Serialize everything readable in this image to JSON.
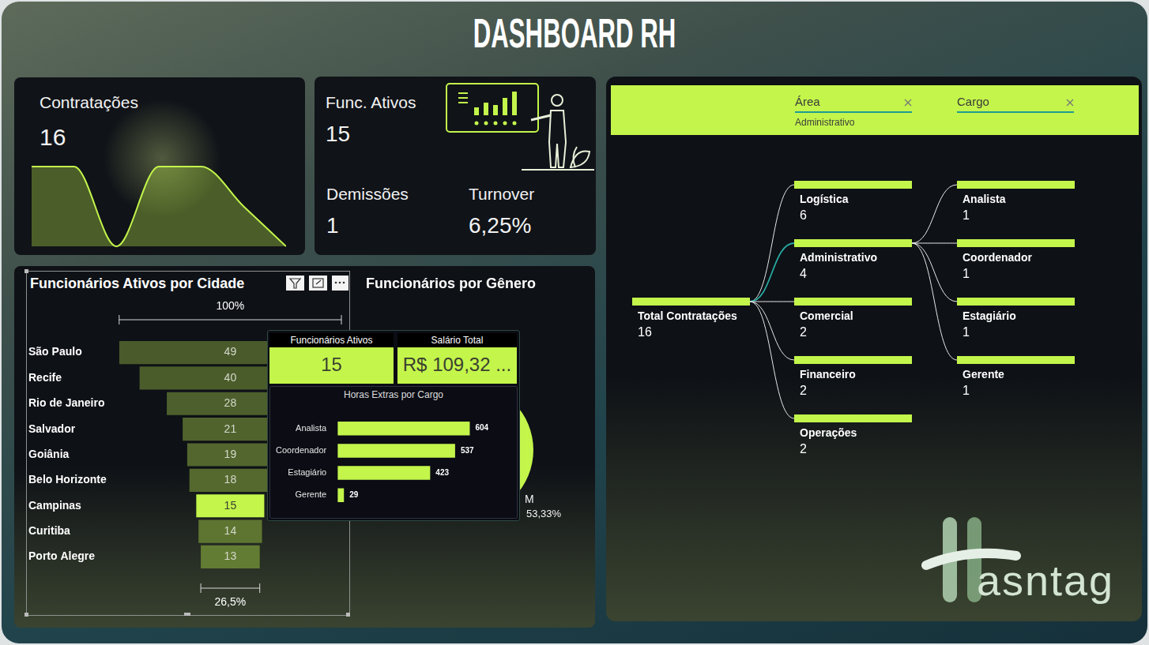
{
  "title": "DASHBOARD RH",
  "cards": [
    {
      "label": "Contratações",
      "value": 16
    },
    {
      "label": "Func. Ativos",
      "value": 15
    },
    {
      "label": "Demissões",
      "value": 1
    },
    {
      "label": "Turnover",
      "value": 6.25,
      "value_label": "6,25%"
    }
  ],
  "chart_data": [
    {
      "type": "line",
      "categories": [
        null,
        null,
        null,
        null,
        null,
        null,
        null
      ],
      "values": [
        2,
        2,
        0,
        2,
        2,
        1,
        0
      ],
      "color": "#c3f54b",
      "tick_labels": false,
      "grid": false
    },
    {
      "type": "funnel",
      "title": "Funcionários Ativos por Cidade",
      "orientation": "horizontal",
      "categories": [
        "São Paulo",
        "Recife",
        "Rio de Janeiro",
        "Salvador",
        "Goiânia",
        "Belo Horizonte",
        "Campinas",
        "Curitiba",
        "Porto Alegre"
      ],
      "values": [
        49,
        40,
        28,
        21,
        19,
        18,
        15,
        14,
        13
      ],
      "colors": [
        "#4a5a2b",
        "#4b5c2b",
        "#4d5f2c",
        "#50632d",
        "#52662e",
        "#55692f",
        "#c3f54b",
        "#5e7531",
        "#637c33"
      ],
      "data_labels": true,
      "tick_labels": "y",
      "grid": false,
      "annotations": [
        "100%",
        "26,5%"
      ]
    },
    {
      "type": "pie",
      "title": "Funcionários por Gênero",
      "categories": [
        "M"
      ],
      "values": [
        53.33
      ],
      "value_labels": [
        "53,33%"
      ],
      "colors": [
        "#c3f54b"
      ],
      "data_labels": true
    },
    {
      "type": "bar",
      "title": "Horas Extras por Cargo",
      "orientation": "horizontal",
      "categories": [
        "Analista",
        "Coordenador",
        "Estagiário",
        "Gerente"
      ],
      "values": [
        604,
        537,
        423,
        29
      ],
      "color": "#c3f54b",
      "data_labels": true,
      "tick_labels": "y",
      "grid": false
    }
  ],
  "tooltip": {
    "cards": [
      {
        "label": "Funcionários Ativos",
        "value": 15
      },
      {
        "label": "Salário Total",
        "value_label": "R$ 109,32 ..."
      }
    ]
  },
  "decomposition_tree": {
    "filters": [
      {
        "label": "Área",
        "value": "Administrativo"
      },
      {
        "label": "Cargo"
      }
    ],
    "root": {
      "label": "Total Contratações",
      "value": 16
    },
    "levels": [
      [
        {
          "label": "Logística",
          "value": 6
        },
        {
          "label": "Administrativo",
          "value": 4,
          "selected": true
        },
        {
          "label": "Comercial",
          "value": 2
        },
        {
          "label": "Financeiro",
          "value": 2
        },
        {
          "label": "Operações",
          "value": 2
        }
      ],
      [
        {
          "label": "Analista",
          "value": 1
        },
        {
          "label": "Coordenador",
          "value": 1
        },
        {
          "label": "Estagiário",
          "value": 1
        },
        {
          "label": "Gerente",
          "value": 1
        }
      ]
    ]
  },
  "logo": "asntag"
}
